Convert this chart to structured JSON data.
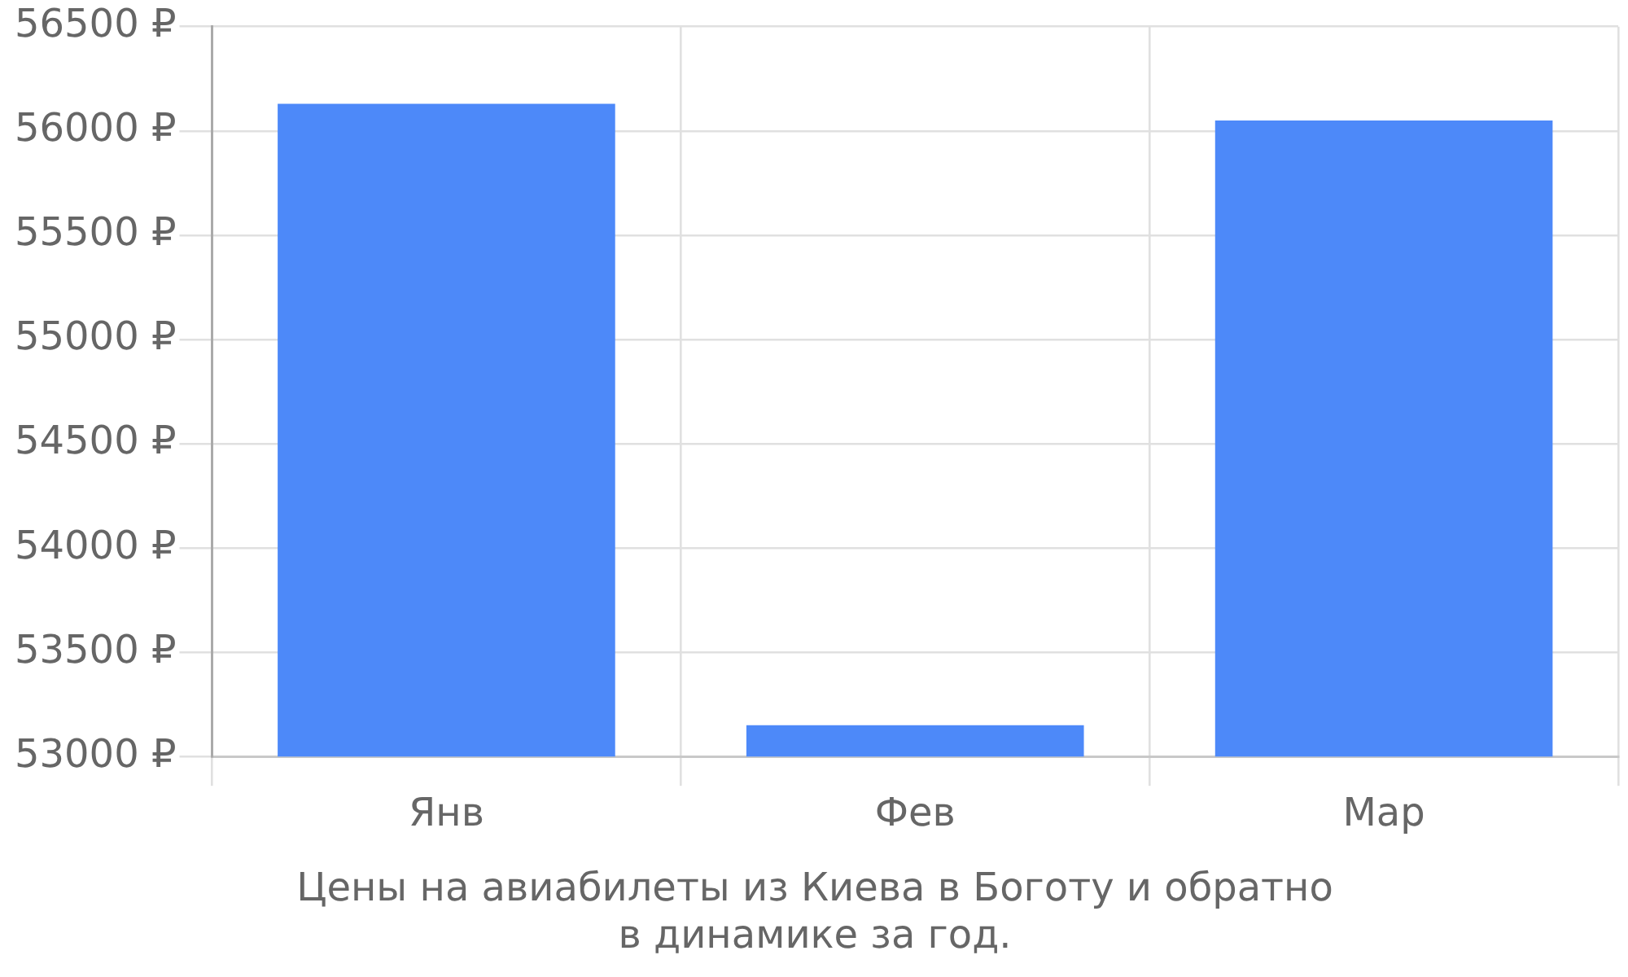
{
  "chart_data": {
    "type": "bar",
    "title": "Цены на авиабилеты из Киева в Боготу и обратно в динамике за год.",
    "categories": [
      "Янв",
      "Фев",
      "Мар"
    ],
    "values": [
      56130,
      53150,
      56050
    ],
    "color": "#4d89f9",
    "ylim": [
      53000,
      56500
    ],
    "yticks": [
      {
        "value": 53000,
        "label": "53000 ₽"
      },
      {
        "value": 53500,
        "label": "53500 ₽"
      },
      {
        "value": 54000,
        "label": "54000 ₽"
      },
      {
        "value": 54500,
        "label": "54500 ₽"
      },
      {
        "value": 55000,
        "label": "55000 ₽"
      },
      {
        "value": 55500,
        "label": "55500 ₽"
      },
      {
        "value": 56000,
        "label": "56000 ₽"
      },
      {
        "value": 56500,
        "label": "56500 ₽"
      }
    ],
    "grid": true
  }
}
